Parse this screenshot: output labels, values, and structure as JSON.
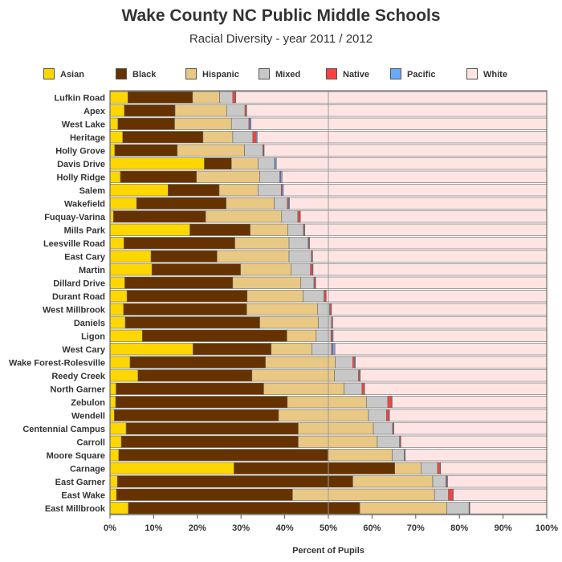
{
  "chart_data": {
    "type": "bar",
    "stacked": true,
    "orientation": "horizontal",
    "title": "Wake County NC Public Middle Schools",
    "subtitle": "Racial Diversity - year 2011 / 2012",
    "xlabel": "Percent of Pupils",
    "xlim": [
      0,
      100
    ],
    "x_ticks": [
      "0%",
      "10%",
      "20%",
      "30%",
      "40%",
      "50%",
      "60%",
      "70%",
      "80%",
      "90%",
      "100%"
    ],
    "reference_line": 50,
    "legend_position": "top",
    "categories": [
      "Lufkin Road",
      "Apex",
      "West Lake",
      "Heritage",
      "Holly Grove",
      "Davis Drive",
      "Holly Ridge",
      "Salem",
      "Wakefield",
      "Fuquay-Varina",
      "Mills Park",
      "Leesville Road",
      "East Cary",
      "Martin",
      "Dillard Drive",
      "Durant Road",
      "West Millbrook",
      "Daniels",
      "Ligon",
      "West Cary",
      "Wake Forest-Rolesville",
      "Reedy Creek",
      "North Garner",
      "Zebulon",
      "Wendell",
      "Centennial Campus",
      "Carroll",
      "Moore Square",
      "Carnage",
      "East Garner",
      "East Wake",
      "East Millbrook"
    ],
    "series": [
      {
        "name": "Asian",
        "color": "#FFD700",
        "values": [
          4.1,
          3.3,
          1.8,
          2.9,
          1.1,
          21.6,
          2.4,
          13.3,
          6.1,
          0.8,
          18.3,
          3.2,
          9.4,
          9.6,
          3.4,
          3.9,
          3.1,
          3.5,
          7.4,
          19.0,
          4.6,
          6.4,
          1.4,
          1.3,
          1.0,
          3.7,
          2.6,
          2.0,
          28.4,
          1.7,
          1.5,
          4.2
        ]
      },
      {
        "name": "Black",
        "color": "#663300",
        "values": [
          14.8,
          11.6,
          13.0,
          18.4,
          14.3,
          6.2,
          17.4,
          11.7,
          20.5,
          21.1,
          13.8,
          25.4,
          15.1,
          20.3,
          24.7,
          27.5,
          28.2,
          30.8,
          33.1,
          17.9,
          31.0,
          26.1,
          33.8,
          39.3,
          37.6,
          39.4,
          40.5,
          47.9,
          36.8,
          53.9,
          40.3,
          53.0
        ]
      },
      {
        "name": "Hispanic",
        "color": "#E8C883",
        "values": [
          6.2,
          11.8,
          13.0,
          6.8,
          15.4,
          6.1,
          14.5,
          8.9,
          11.0,
          17.4,
          8.6,
          12.4,
          16.5,
          11.6,
          15.6,
          12.8,
          16.2,
          13.4,
          6.7,
          9.3,
          16.0,
          18.9,
          18.4,
          18.1,
          20.6,
          17.2,
          18.1,
          14.7,
          6.0,
          18.3,
          32.5,
          19.9
        ]
      },
      {
        "name": "Mixed",
        "color": "#C8C8C8",
        "values": [
          3.0,
          4.2,
          4.0,
          4.6,
          4.2,
          3.8,
          4.6,
          5.3,
          3.0,
          3.7,
          3.6,
          4.4,
          5.1,
          4.4,
          3.0,
          4.8,
          2.8,
          3.0,
          3.4,
          4.5,
          4.0,
          5.5,
          4.1,
          4.9,
          4.1,
          4.4,
          5.1,
          2.8,
          3.8,
          3.0,
          3.2,
          5.1
        ]
      },
      {
        "name": "Native",
        "color": "#FF4040",
        "values": [
          0.6,
          0.3,
          0.2,
          0.8,
          0.2,
          0.1,
          0.2,
          0.2,
          0.3,
          0.5,
          0.2,
          0.2,
          0.2,
          0.5,
          0.3,
          0.4,
          0.3,
          0.2,
          0.3,
          0.3,
          0.4,
          0.3,
          0.5,
          0.9,
          0.6,
          0.2,
          0.2,
          0.1,
          0.6,
          0.2,
          1.0,
          0.1
        ]
      },
      {
        "name": "Pacific",
        "color": "#66AAFF",
        "values": [
          0.1,
          0.1,
          0.3,
          0.2,
          0.1,
          0.3,
          0.3,
          0.3,
          0.2,
          0.1,
          0.1,
          0.1,
          0.1,
          0.1,
          0.1,
          0.1,
          0.1,
          0.1,
          0.2,
          0.5,
          0.2,
          0.1,
          0.1,
          0.1,
          0.1,
          0.1,
          0.1,
          0.1,
          0.1,
          0.2,
          0.1,
          0.1
        ]
      },
      {
        "name": "White",
        "color": "#FFE4E4",
        "values": [
          71.2,
          68.7,
          67.7,
          66.3,
          64.7,
          61.9,
          60.6,
          60.3,
          58.9,
          56.4,
          55.4,
          54.3,
          53.6,
          53.5,
          52.9,
          50.5,
          49.3,
          49.0,
          48.9,
          48.5,
          43.8,
          42.7,
          41.7,
          35.4,
          36.0,
          35.0,
          33.4,
          32.4,
          24.3,
          22.7,
          21.4,
          17.6
        ]
      }
    ]
  }
}
